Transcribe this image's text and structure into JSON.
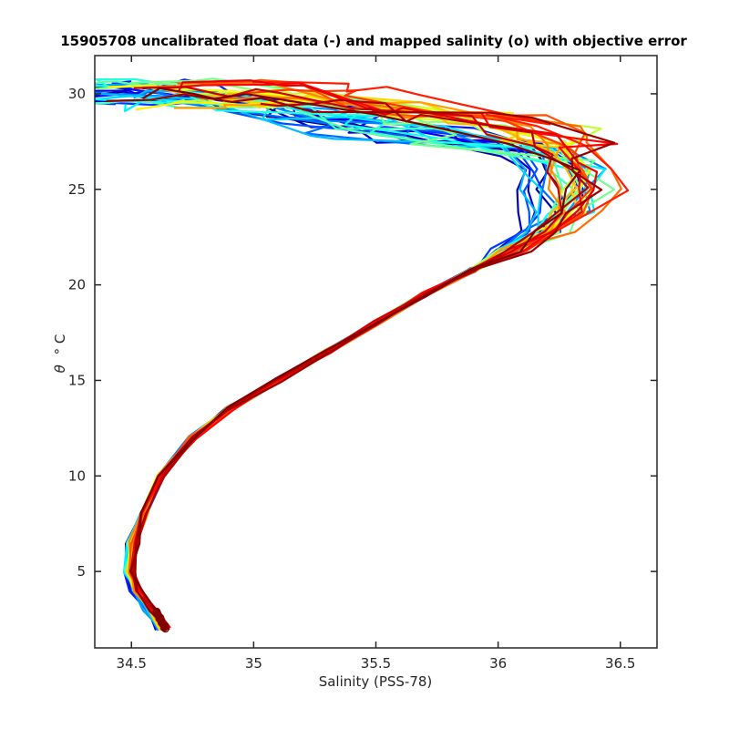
{
  "chart_data": {
    "type": "line",
    "title": "15905708 uncalibrated float data (-) and mapped salinity (o) with objective error",
    "xlabel": "Salinity (PSS-78)",
    "ylabel_symbol": "θ",
    "ylabel_units": "° C",
    "xlim": [
      34.35,
      36.65
    ],
    "ylim": [
      1,
      32
    ],
    "xticks": [
      34.5,
      35,
      35.5,
      36,
      36.5
    ],
    "xtick_labels": [
      "34.5",
      "35",
      "35.5",
      "36",
      "36.5"
    ],
    "yticks": [
      5,
      10,
      15,
      20,
      25,
      30
    ],
    "ytick_labels": [
      "5",
      "10",
      "15",
      "20",
      "25",
      "30"
    ],
    "grid": false,
    "colormap": "jet",
    "profile_count": 40,
    "base_profile": {
      "salinity": [
        34.63,
        34.57,
        34.52,
        34.49,
        34.5,
        34.55,
        34.62,
        34.75,
        34.9,
        35.1,
        35.3,
        35.5,
        35.7,
        35.9,
        36.05,
        36.18,
        36.26,
        36.3,
        36.28,
        36.2,
        36.05,
        35.85,
        35.6,
        35.3,
        35.0
      ],
      "theta": [
        2.0,
        3.0,
        4.0,
        5.0,
        6.5,
        8.0,
        10.0,
        12.0,
        13.5,
        15.0,
        16.5,
        18.0,
        19.5,
        20.8,
        21.8,
        22.8,
        23.8,
        25.0,
        26.0,
        27.0,
        27.8,
        28.4,
        29.0,
        29.5,
        30.0
      ]
    },
    "mapped_salinity_markers": {
      "salinity_range": [
        34.6,
        34.64
      ],
      "theta_range": [
        2.0,
        2.9
      ],
      "color": "#800000"
    }
  }
}
